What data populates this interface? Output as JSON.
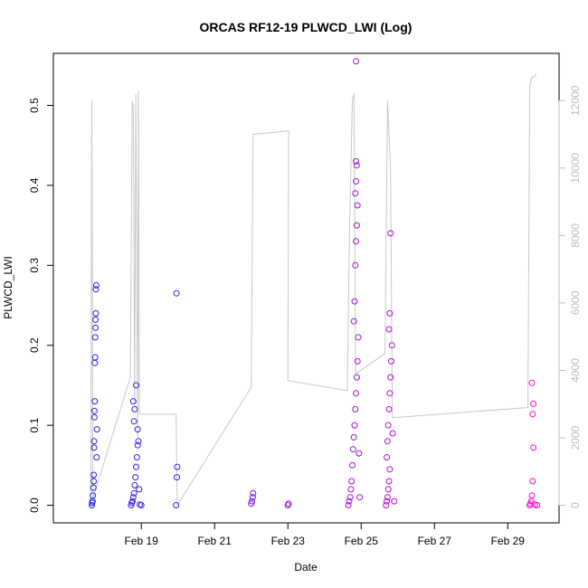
{
  "chart_data": {
    "type": "scatter",
    "title": "ORCAS RF12-19 PLWCD_LWI (Log)",
    "xlabel": "Date",
    "ylabel": "PLWCD_LWI",
    "x_ticks": [
      "Feb 19",
      "Feb 21",
      "Feb 23",
      "Feb 25",
      "Feb 27",
      "Feb 29"
    ],
    "x_tick_days": [
      19,
      21,
      23,
      25,
      27,
      29
    ],
    "xlim_days": [
      16.6,
      30.4
    ],
    "ylim": [
      -0.022,
      0.565
    ],
    "y_ticks": [
      "0.0",
      "0.1",
      "0.2",
      "0.3",
      "0.4",
      "0.5"
    ],
    "y_tick_values": [
      0,
      0.1,
      0.2,
      0.3,
      0.4,
      0.5
    ],
    "y2_ticks": [
      "0",
      "2000",
      "4000",
      "6000",
      "8000",
      "10000",
      "12000"
    ],
    "y2_tick_values": [
      0,
      2000,
      4000,
      6000,
      8000,
      10000,
      12000
    ],
    "y2lim": [
      -520,
      13400
    ],
    "grid": false,
    "colors": {
      "start": "#2222ee",
      "end": "#ff00cc",
      "altitude_line": "#c8c8c8"
    },
    "series": [
      {
        "values": [
          [
            17.65,
            0
          ],
          [
            17.66,
            0.003
          ],
          [
            17.67,
            0.005
          ],
          [
            17.68,
            0.012
          ],
          [
            17.69,
            0.022
          ],
          [
            17.7,
            0.03
          ],
          [
            17.7,
            0.038
          ],
          [
            17.71,
            0.072
          ],
          [
            17.71,
            0.08
          ],
          [
            17.72,
            0.11
          ],
          [
            17.72,
            0.118
          ],
          [
            17.73,
            0.13
          ],
          [
            17.73,
            0.178
          ],
          [
            17.74,
            0.185
          ],
          [
            17.74,
            0.21
          ],
          [
            17.75,
            0.222
          ],
          [
            17.75,
            0.232
          ],
          [
            17.76,
            0.24
          ],
          [
            17.76,
            0.27
          ],
          [
            17.77,
            0.275
          ],
          [
            17.78,
            0.06
          ],
          [
            17.79,
            0.095
          ],
          [
            18.72,
            0
          ],
          [
            18.74,
            0.003
          ],
          [
            18.76,
            0.005
          ],
          [
            18.78,
            0.01
          ],
          [
            18.8,
            0.015
          ],
          [
            18.82,
            0.025
          ],
          [
            18.84,
            0.035
          ],
          [
            18.86,
            0.048
          ],
          [
            18.88,
            0.06
          ],
          [
            18.9,
            0.075
          ],
          [
            18.92,
            0.08
          ],
          [
            18.8,
            0.105
          ],
          [
            18.82,
            0.12
          ],
          [
            18.78,
            0.13
          ],
          [
            18.86,
            0.15
          ],
          [
            18.9,
            0.095
          ],
          [
            18.94,
            0.02
          ],
          [
            18.96,
            0.001
          ],
          [
            19.0,
            0
          ],
          [
            19.95,
            0
          ],
          [
            19.97,
            0.035
          ],
          [
            19.98,
            0.048
          ],
          [
            19.96,
            0.265
          ],
          [
            22.0,
            0.002
          ],
          [
            22.02,
            0.005
          ],
          [
            22.04,
            0.01
          ],
          [
            22.05,
            0.015
          ],
          [
            23.0,
            0
          ],
          [
            23.02,
            0.002
          ],
          [
            24.65,
            0
          ],
          [
            24.67,
            0.005
          ],
          [
            24.7,
            0.01
          ],
          [
            24.72,
            0.02
          ],
          [
            24.74,
            0.03
          ],
          [
            24.76,
            0.05
          ],
          [
            24.78,
            0.07
          ],
          [
            24.8,
            0.085
          ],
          [
            24.82,
            0.1
          ],
          [
            24.84,
            0.12
          ],
          [
            24.86,
            0.14
          ],
          [
            24.88,
            0.16
          ],
          [
            24.9,
            0.18
          ],
          [
            24.92,
            0.21
          ],
          [
            24.8,
            0.23
          ],
          [
            24.82,
            0.255
          ],
          [
            24.84,
            0.3
          ],
          [
            24.86,
            0.33
          ],
          [
            24.88,
            0.35
          ],
          [
            24.9,
            0.375
          ],
          [
            24.84,
            0.39
          ],
          [
            24.86,
            0.405
          ],
          [
            24.88,
            0.425
          ],
          [
            24.86,
            0.43
          ],
          [
            24.86,
            0.555
          ],
          [
            24.94,
            0.065
          ],
          [
            24.96,
            0.01
          ],
          [
            25.68,
            0
          ],
          [
            25.7,
            0.005
          ],
          [
            25.72,
            0.01
          ],
          [
            25.74,
            0.02
          ],
          [
            25.76,
            0.03
          ],
          [
            25.78,
            0.045
          ],
          [
            25.7,
            0.06
          ],
          [
            25.72,
            0.08
          ],
          [
            25.74,
            0.1
          ],
          [
            25.76,
            0.12
          ],
          [
            25.78,
            0.14
          ],
          [
            25.8,
            0.16
          ],
          [
            25.82,
            0.18
          ],
          [
            25.84,
            0.2
          ],
          [
            25.76,
            0.22
          ],
          [
            25.78,
            0.24
          ],
          [
            25.8,
            0.34
          ],
          [
            25.86,
            0.09
          ],
          [
            25.9,
            0.005
          ],
          [
            29.6,
            0
          ],
          [
            29.62,
            0.002
          ],
          [
            29.64,
            0.005
          ],
          [
            29.66,
            0.012
          ],
          [
            29.68,
            0.03
          ],
          [
            29.7,
            0.072
          ],
          [
            29.68,
            0.114
          ],
          [
            29.7,
            0.127
          ],
          [
            29.66,
            0.153
          ],
          [
            29.74,
            0.001
          ],
          [
            29.8,
            0
          ]
        ]
      },
      {
        "values": [
          [
            17.62,
            0
          ],
          [
            17.65,
            12000
          ],
          [
            17.68,
            200
          ],
          [
            18.7,
            3800
          ],
          [
            18.75,
            12000
          ],
          [
            18.78,
            11800
          ],
          [
            18.82,
            3000
          ],
          [
            18.85,
            12200
          ],
          [
            18.9,
            2000
          ],
          [
            18.92,
            12300
          ],
          [
            18.95,
            2700
          ],
          [
            19.95,
            2700
          ],
          [
            19.98,
            0
          ],
          [
            22.0,
            3500
          ],
          [
            22.05,
            11000
          ],
          [
            23.02,
            11100
          ],
          [
            23.0,
            3700
          ],
          [
            24.62,
            3400
          ],
          [
            24.68,
            8000
          ],
          [
            24.72,
            10000
          ],
          [
            24.76,
            12000
          ],
          [
            24.8,
            12200
          ],
          [
            24.85,
            3900
          ],
          [
            25.65,
            4500
          ],
          [
            25.72,
            12000
          ],
          [
            25.8,
            10000
          ],
          [
            25.85,
            2600
          ],
          [
            29.55,
            2900
          ],
          [
            29.6,
            12400
          ],
          [
            29.65,
            12700
          ],
          [
            29.72,
            12700
          ],
          [
            29.78,
            12800
          ]
        ]
      }
    ]
  }
}
